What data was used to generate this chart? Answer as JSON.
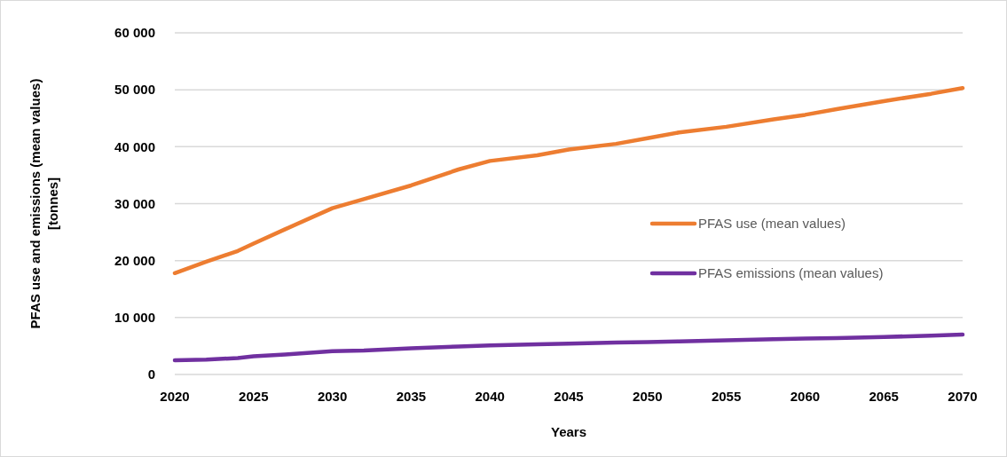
{
  "chart_data": {
    "type": "line",
    "xlabel": "Years",
    "ylabel": "PFAS use and emissions (mean values) [tonnes]",
    "x": [
      2020,
      2022,
      2024,
      2025,
      2027,
      2030,
      2032,
      2035,
      2038,
      2040,
      2043,
      2045,
      2048,
      2050,
      2052,
      2055,
      2058,
      2060,
      2062,
      2065,
      2068,
      2070
    ],
    "series": [
      {
        "name": "PFAS use (mean values)",
        "color": "#ed7d31",
        "values": [
          17800,
          19800,
          21700,
          23000,
          25500,
          29200,
          30800,
          33200,
          36000,
          37500,
          38500,
          39500,
          40500,
          41500,
          42500,
          43500,
          44800,
          45600,
          46600,
          48000,
          49300,
          50300
        ]
      },
      {
        "name": "PFAS emissions (mean values)",
        "color": "#7030a0",
        "values": [
          2500,
          2600,
          2900,
          3200,
          3500,
          4100,
          4200,
          4600,
          4900,
          5100,
          5300,
          5400,
          5600,
          5700,
          5800,
          6000,
          6200,
          6300,
          6400,
          6600,
          6800,
          7000
        ]
      }
    ],
    "xlim": [
      2020,
      2070
    ],
    "xticks": [
      2020,
      2025,
      2030,
      2035,
      2040,
      2045,
      2050,
      2055,
      2060,
      2065,
      2070
    ],
    "ylim": [
      0,
      60000
    ],
    "yticks": [
      {
        "value": 0,
        "label": "0"
      },
      {
        "value": 10000,
        "label": "10 000"
      },
      {
        "value": 20000,
        "label": "20 000"
      },
      {
        "value": 30000,
        "label": "30 000"
      },
      {
        "value": 40000,
        "label": "40 000"
      },
      {
        "value": 50000,
        "label": "50 000"
      },
      {
        "value": 60000,
        "label": "60 000"
      }
    ],
    "grid": "y",
    "legend": "right",
    "marker": "none",
    "line_style": "solid"
  }
}
